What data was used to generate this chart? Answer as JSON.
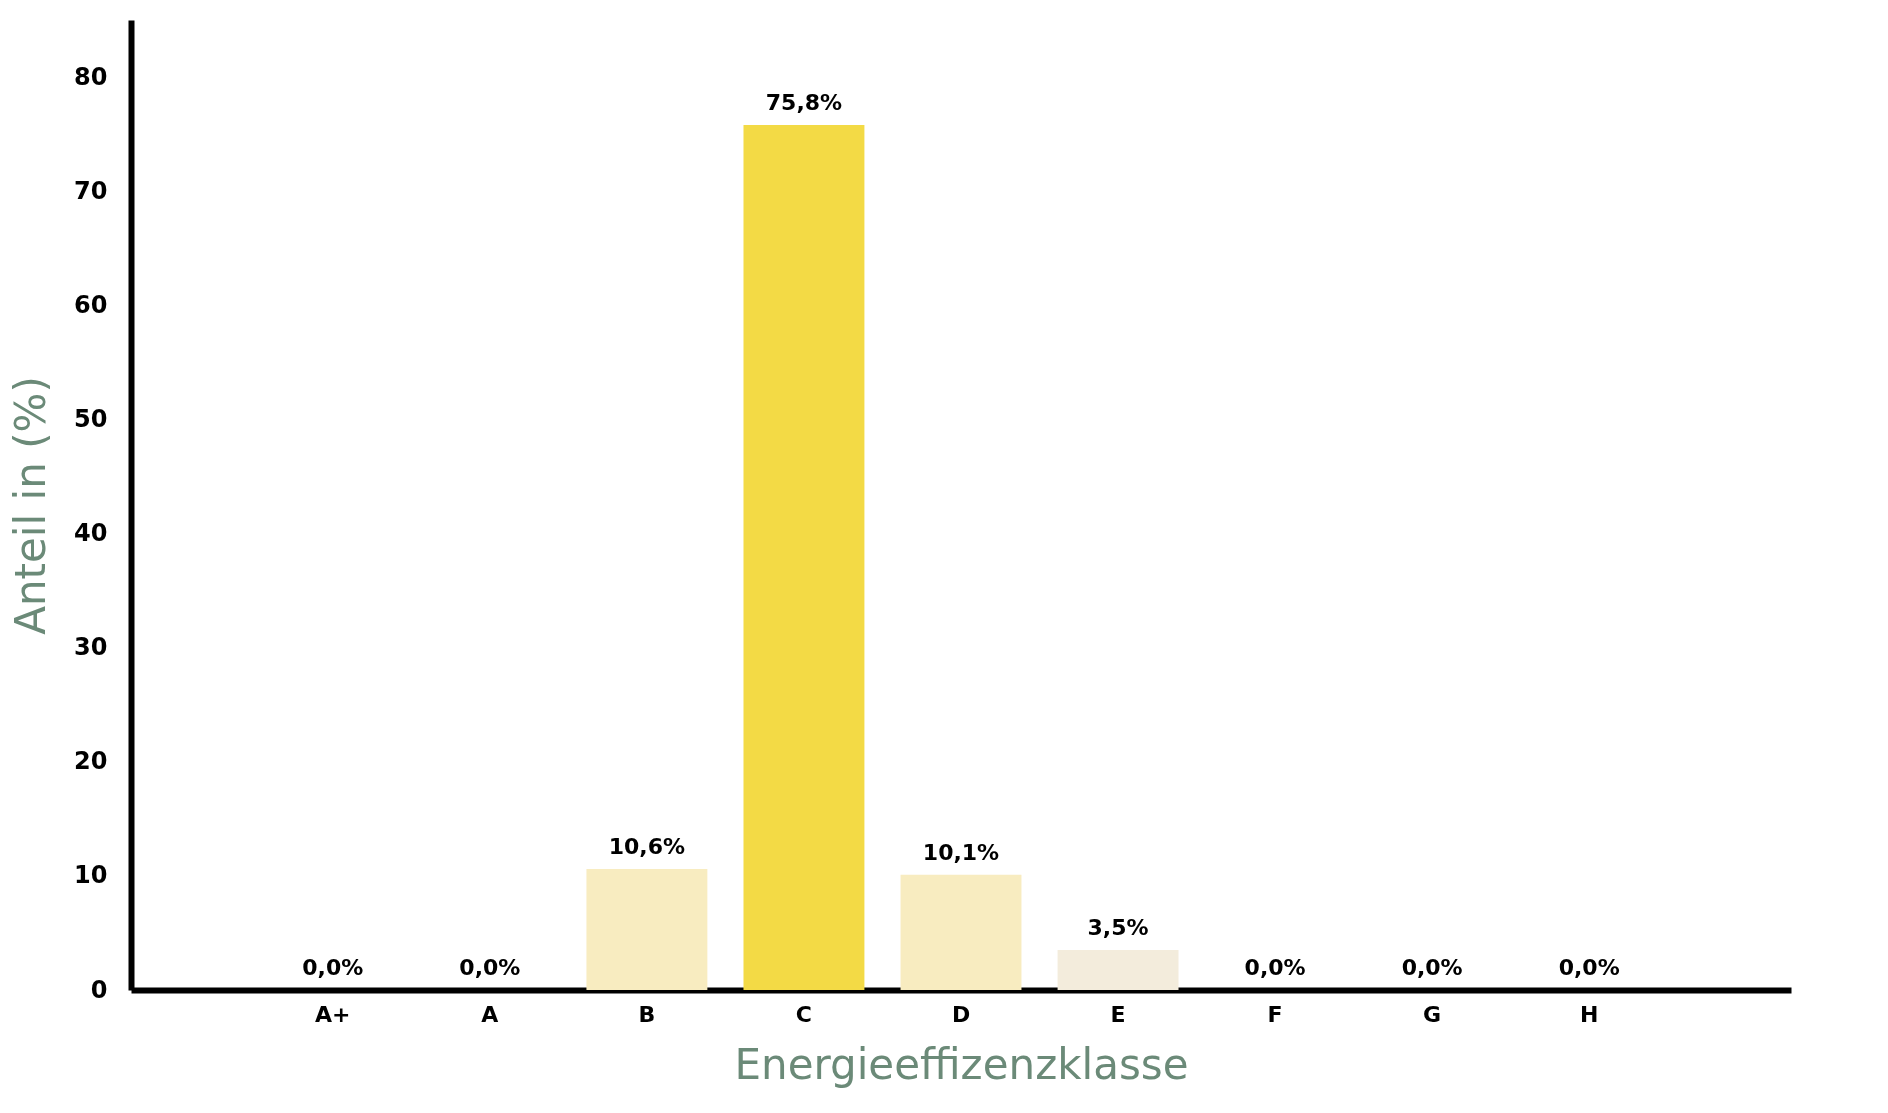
{
  "chart_data": {
    "type": "bar",
    "xlabel": "Energieeffizenzklasse",
    "ylabel": "Anteil in (%)",
    "categories": [
      "A+",
      "A",
      "B",
      "C",
      "D",
      "E",
      "F",
      "G",
      "H"
    ],
    "values": [
      0.0,
      0.0,
      10.6,
      75.8,
      10.1,
      3.5,
      0.0,
      0.0,
      0.0
    ],
    "colors": [
      "#f8ecc0",
      "#f8ecc0",
      "#f8ecc0",
      "#f3da45",
      "#f8ecc0",
      "#f3ecdc",
      "#f8ecc0",
      "#f8ecc0",
      "#f8ecc0"
    ],
    "value_labels": [
      "0,0%",
      "0,0%",
      "10,6%",
      "75,8%",
      "10,1%",
      "3,5%",
      "0,0%",
      "0,0%",
      "0,0%"
    ],
    "ylim": [
      0,
      85
    ],
    "yticks": [
      0,
      10,
      20,
      30,
      40,
      50,
      60,
      70,
      80
    ],
    "grid": false
  }
}
